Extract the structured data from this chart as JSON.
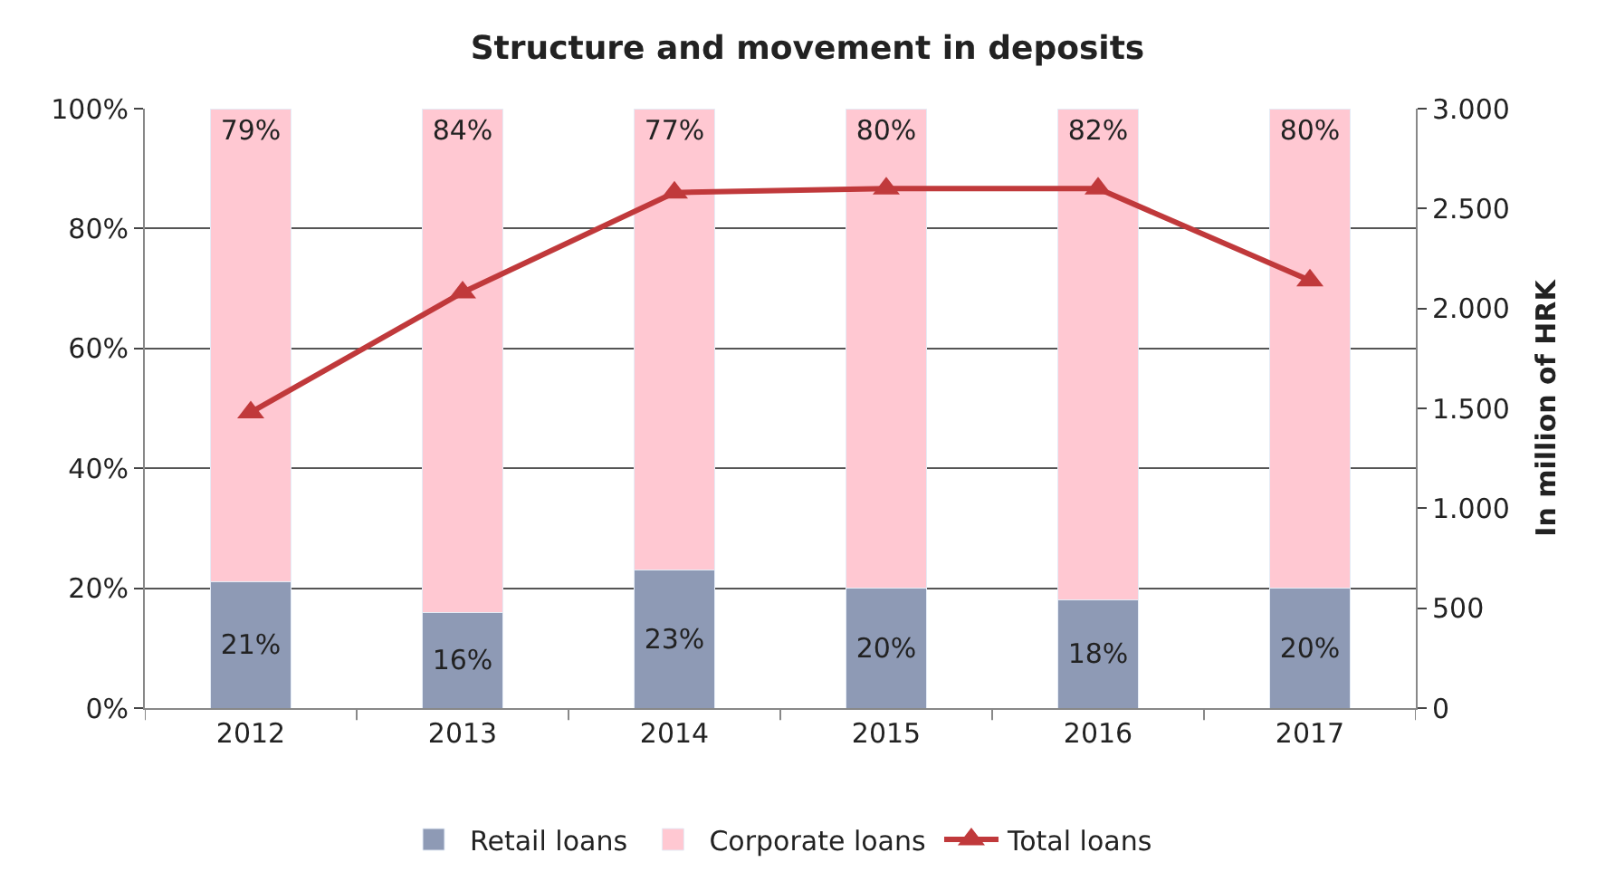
{
  "chart_data": {
    "type": "bar",
    "title": "Structure and movement in deposits",
    "y2label": "In million of HRK",
    "categories": [
      "2012",
      "2013",
      "2014",
      "2015",
      "2016",
      "2017"
    ],
    "stacked": true,
    "grid": "y",
    "legend": "bottom",
    "marker": "triangle",
    "series": [
      {
        "name": "Retail loans",
        "color": "#8e9ab5",
        "values": [
          21,
          16,
          23,
          20,
          18,
          20
        ],
        "value_labels": [
          "21%",
          "16%",
          "23%",
          "20%",
          "18%",
          "20%"
        ]
      },
      {
        "name": "Corporate loans",
        "color": "#ffc8d2",
        "values": [
          79,
          84,
          77,
          80,
          82,
          80
        ],
        "value_labels": [
          "79%",
          "84%",
          "77%",
          "80%",
          "82%",
          "80%"
        ]
      },
      {
        "name": "Total loans",
        "type": "line",
        "axis": "y2",
        "color": "#c0393b",
        "values": [
          1480,
          2080,
          2580,
          2600,
          2600,
          2140
        ]
      }
    ],
    "ylim": [
      0,
      100
    ],
    "yticks": [
      {
        "value": 0,
        "label": "0%"
      },
      {
        "value": 20,
        "label": "20%"
      },
      {
        "value": 40,
        "label": "40%"
      },
      {
        "value": 60,
        "label": "60%"
      },
      {
        "value": 80,
        "label": "80%"
      },
      {
        "value": 100,
        "label": "100%"
      }
    ],
    "y2lim": [
      0,
      3000
    ],
    "y2ticks": [
      {
        "value": 0,
        "label": "0"
      },
      {
        "value": 500,
        "label": "500"
      },
      {
        "value": 1000,
        "label": "1.000"
      },
      {
        "value": 1500,
        "label": "1.500"
      },
      {
        "value": 2000,
        "label": "2.000"
      },
      {
        "value": 2500,
        "label": "2.500"
      },
      {
        "value": 3000,
        "label": "3.000"
      }
    ]
  }
}
